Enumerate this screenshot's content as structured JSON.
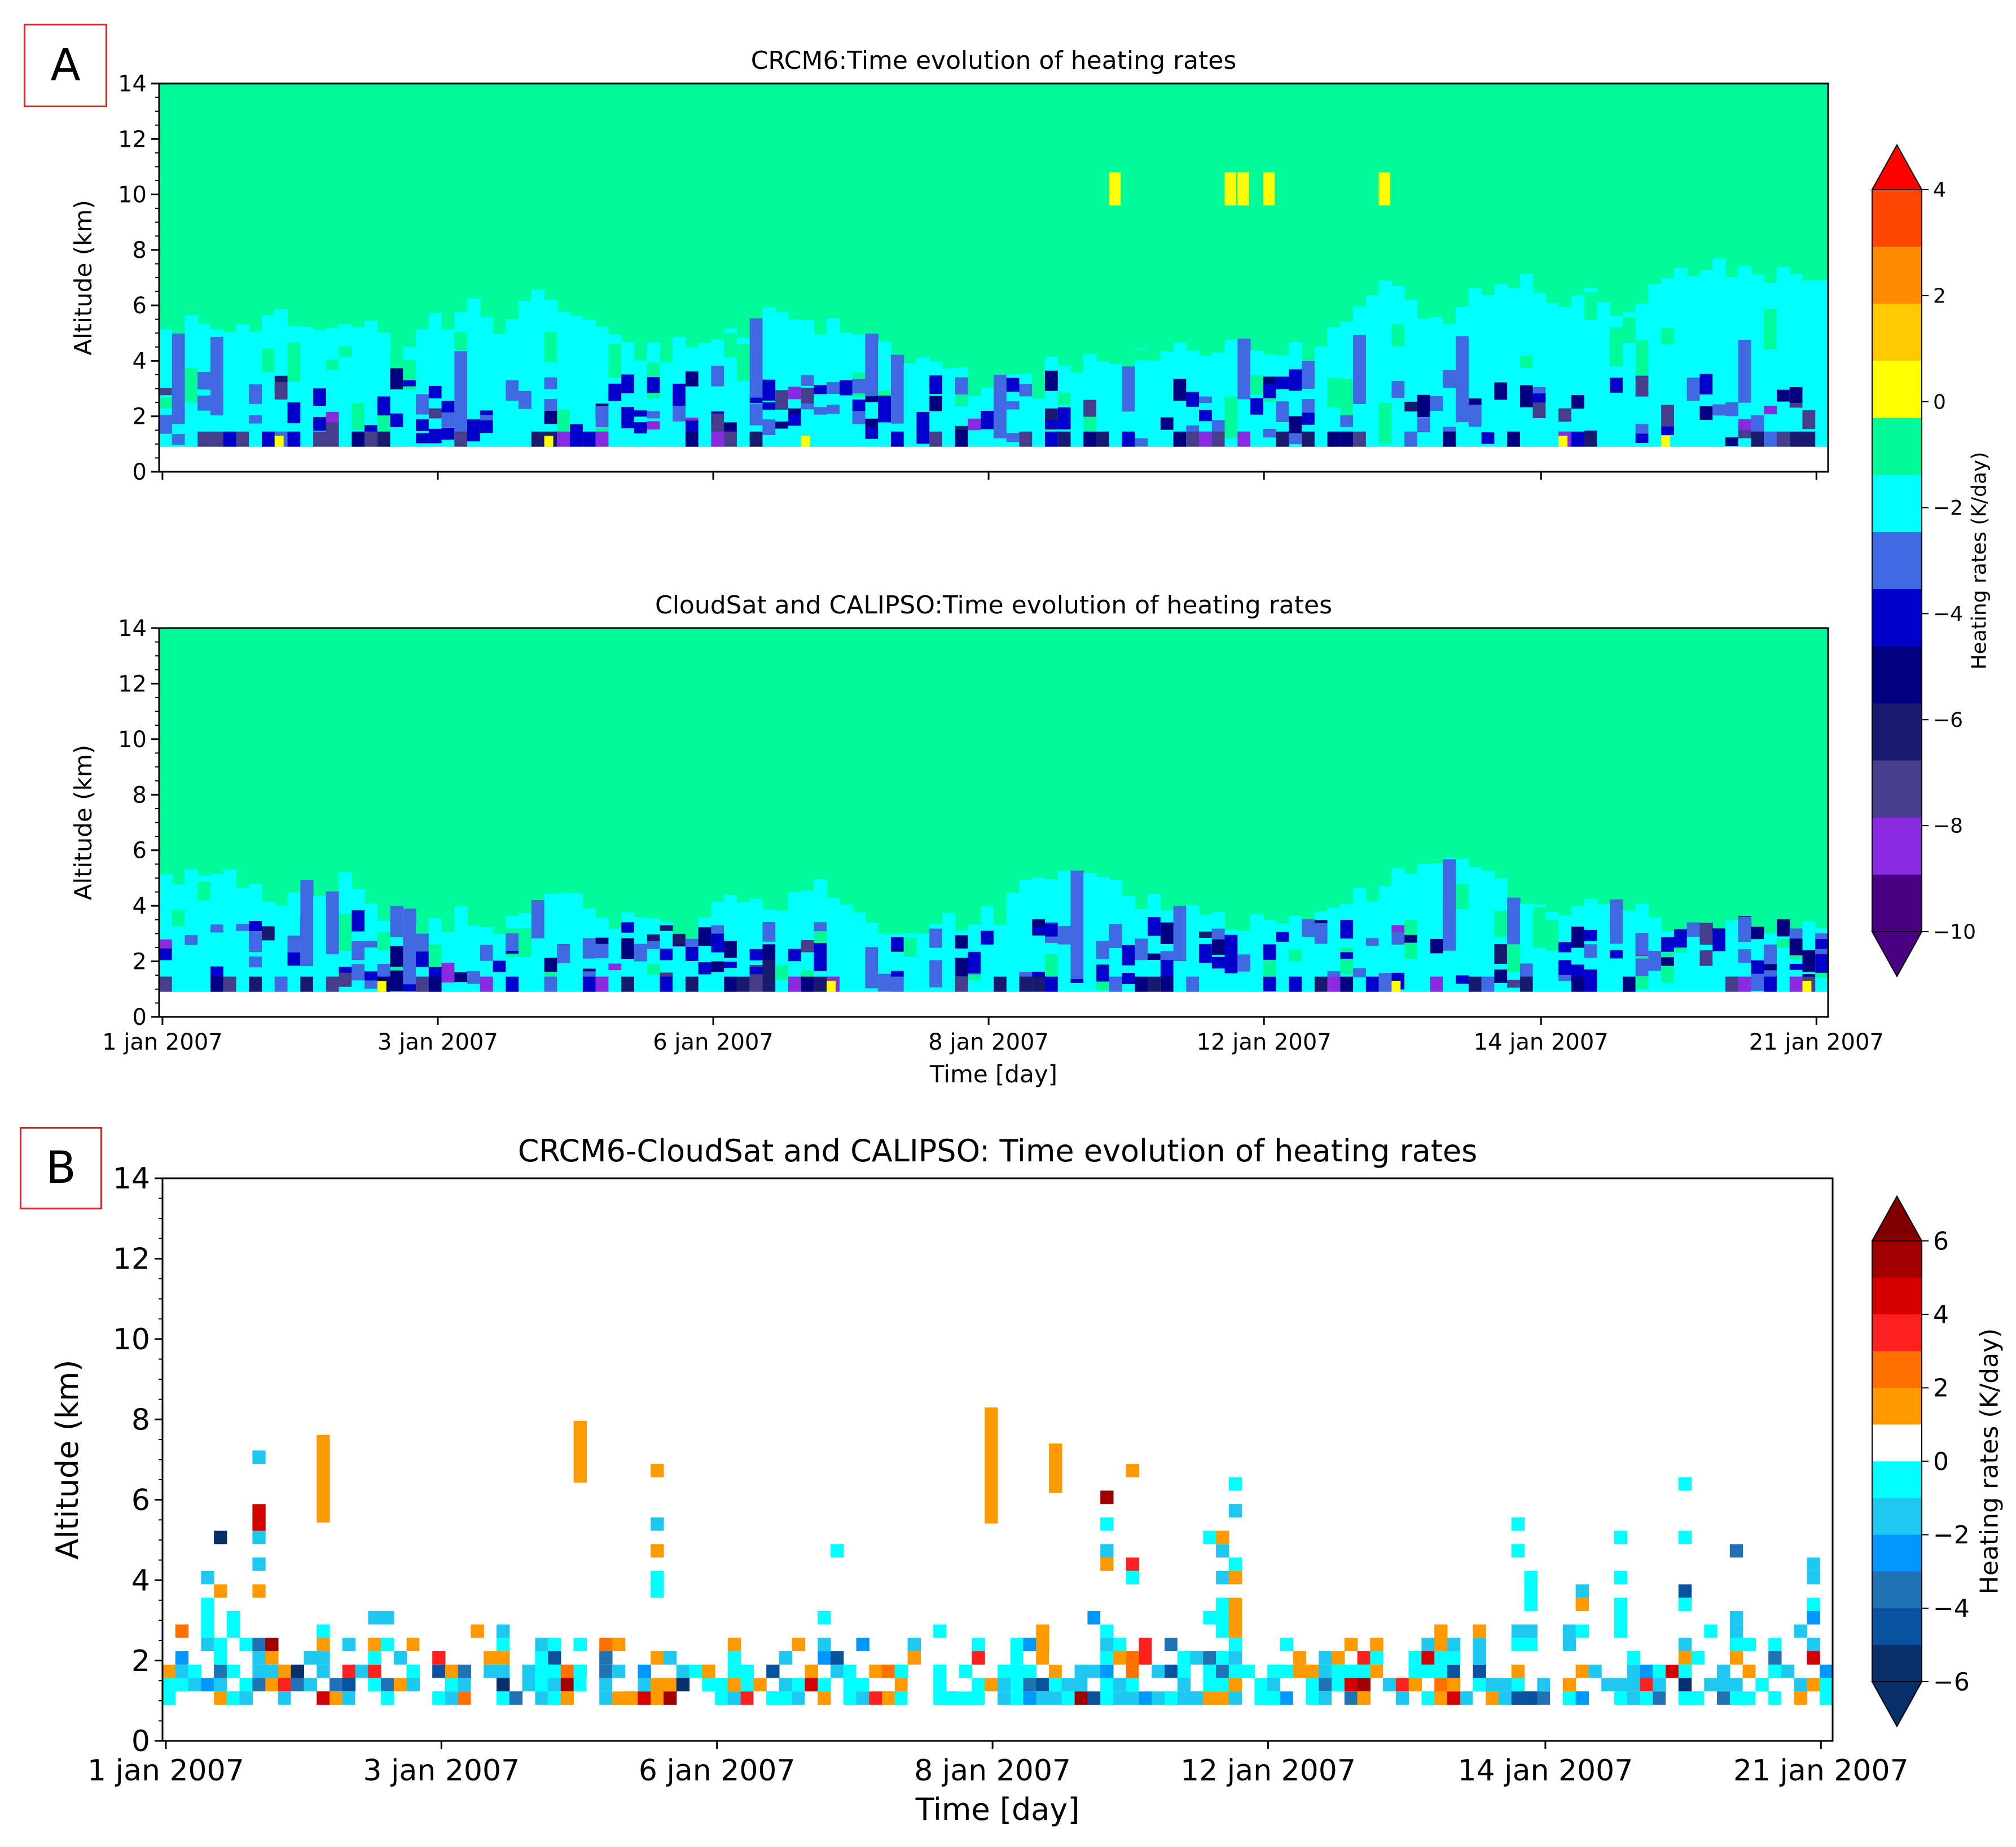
{
  "panels": {
    "a_label": "A",
    "b_label": "B"
  },
  "chart_data": [
    {
      "id": "crcm6",
      "type": "heatmap",
      "title": "CRCM6:Time evolution of heating rates",
      "xlabel": "",
      "ylabel": "Altitude (km)",
      "ylim": [
        0,
        14
      ],
      "yticks": [
        0,
        2,
        4,
        6,
        8,
        10,
        12,
        14
      ],
      "xticks": [
        "1 jan 2007",
        "3 jan 2007",
        "6 jan 2007",
        "8 jan 2007",
        "12 jan 2007",
        "14 jan 2007",
        "21 jan 2007"
      ],
      "show_xticklabels": false,
      "n_columns": 130,
      "surface_km": 0.9,
      "background": "0 to -1 K/day above cloud top",
      "profile_seed": 11,
      "warm_spots": [
        {
          "col": 74,
          "y0": 9.6,
          "y1": 10.8
        },
        {
          "col": 83,
          "y0": 9.6,
          "y1": 10.8
        },
        {
          "col": 84,
          "y0": 9.6,
          "y1": 10.8
        },
        {
          "col": 86,
          "y0": 9.6,
          "y1": 10.8
        },
        {
          "col": 95,
          "y0": 9.6,
          "y1": 10.8
        }
      ]
    },
    {
      "id": "cloudsat",
      "type": "heatmap",
      "title": "CloudSat and CALIPSO:Time evolution of heating rates",
      "xlabel": "Time [day]",
      "ylabel": "Altitude (km)",
      "ylim": [
        0,
        14
      ],
      "yticks": [
        0,
        2,
        4,
        6,
        8,
        10,
        12,
        14
      ],
      "xticks": [
        "1 jan 2007",
        "3 jan 2007",
        "6 jan 2007",
        "8 jan 2007",
        "12 jan 2007",
        "14 jan 2007",
        "21 jan 2007"
      ],
      "show_xticklabels": true,
      "n_columns": 130,
      "surface_km": 0.9,
      "profile_seed": 23
    },
    {
      "id": "diff",
      "type": "heatmap",
      "title": "CRCM6-CloudSat and CALIPSO: Time evolution of heating rates",
      "xlabel": "Time [day]",
      "ylabel": "Altitude (km)",
      "ylim": [
        0,
        14
      ],
      "yticks": [
        0,
        2,
        4,
        6,
        8,
        10,
        12,
        14
      ],
      "xticks": [
        "1 jan 2007",
        "3 jan 2007",
        "6 jan 2007",
        "8 jan 2007",
        "12 jan 2007",
        "14 jan 2007",
        "21 jan 2007"
      ],
      "show_xticklabels": true,
      "n_columns": 130,
      "surface_km": 0.9,
      "profile_seed": 37
    }
  ],
  "colorbars": [
    {
      "id": "cb-top",
      "label": "Heating rates (K/day)",
      "range": [
        -10,
        4
      ],
      "ticks": [
        4,
        2,
        0,
        -2,
        -4,
        -6,
        -8,
        -10
      ],
      "colors": [
        "#4b0082",
        "#8a2be2",
        "#483d8b",
        "#191970",
        "#000080",
        "#0000cd",
        "#4169e1",
        "#00ffff",
        "#00fa9a",
        "#ffff00",
        "#ffc800",
        "#ff8c00",
        "#ff4500"
      ],
      "over": "#ff0000",
      "under": "#4b0082"
    },
    {
      "id": "cb-bottom",
      "label": "Heating rates (K/day)",
      "range": [
        -6,
        6
      ],
      "ticks": [
        6,
        4,
        2,
        0,
        -2,
        -4,
        -6
      ],
      "colors": [
        "#08306b",
        "#08519c",
        "#2171b5",
        "#0096ff",
        "#1ec8f0",
        "#00ffff",
        "#ffffff",
        "#ff9900",
        "#ff7000",
        "#ff2020",
        "#d40000",
        "#a00000"
      ],
      "over": "#800000",
      "under": "#08306b"
    }
  ]
}
